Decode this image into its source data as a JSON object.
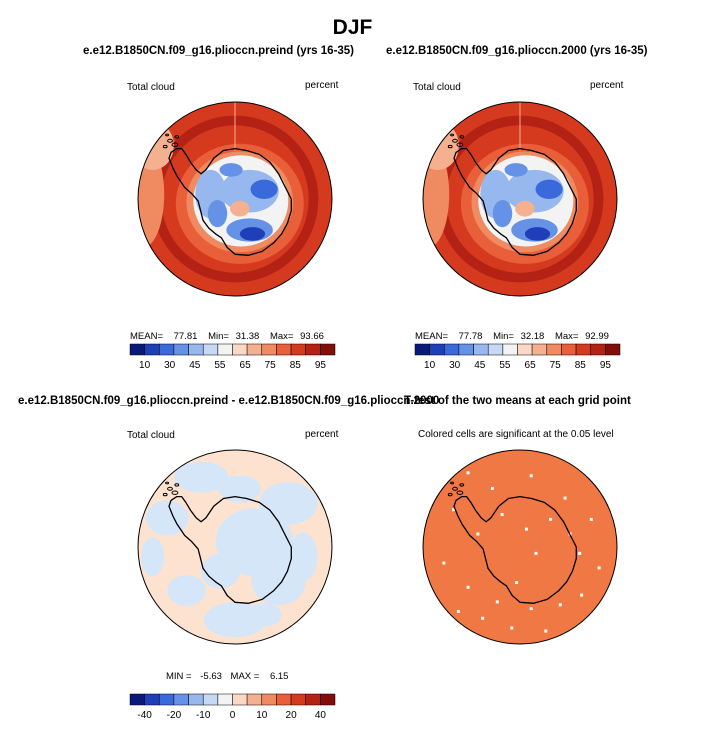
{
  "page": {
    "title": "DJF"
  },
  "panels": [
    {
      "title": "e.e12.B1850CN.f09_g16.plioccn.preind (yrs 16-35)",
      "left_label": "Total cloud",
      "right_label": "percent",
      "stats": {
        "mean_label": "MEAN=",
        "mean": "77.81",
        "min_label": "Min=",
        "min": "31.38",
        "max_label": "Max=",
        "max": "93.66"
      },
      "colorbar": {
        "labels": [
          "10",
          "30",
          "45",
          "55",
          "65",
          "75",
          "85",
          "95"
        ]
      }
    },
    {
      "title": "e.e12.B1850CN.f09_g16.plioccn.2000 (yrs 16-35)",
      "left_label": "Total cloud",
      "right_label": "percent",
      "stats": {
        "mean_label": "MEAN=",
        "mean": "77.78",
        "min_label": "Min=",
        "min": "32.18",
        "max_label": "Max=",
        "max": "92.99"
      },
      "colorbar": {
        "labels": [
          "10",
          "30",
          "45",
          "55",
          "65",
          "75",
          "85",
          "95"
        ]
      }
    },
    {
      "title": "e.e12.B1850CN.f09_g16.plioccn.preind - e.e12.B1850CN.f09_g16.plioccn.2000",
      "left_label": "Total cloud",
      "right_label": "percent",
      "stats": {
        "min_label": "MIN =",
        "min": "-5.63",
        "max_label": "MAX =",
        "max": "6.15"
      },
      "colorbar": {
        "labels": [
          "-40",
          "-20",
          "-10",
          "0",
          "10",
          "20",
          "40"
        ]
      }
    },
    {
      "title": "T-test of the two means at each grid point",
      "subtitle": "Colored cells are significant at the 0.05 level"
    }
  ],
  "colors": {
    "scale": [
      "#0a1a7a",
      "#1f3fb8",
      "#3a69dc",
      "#6592e6",
      "#97b8ee",
      "#c6d8f3",
      "#f3f3f3",
      "#fad8c6",
      "#f5b090",
      "#ef8a61",
      "#e85f3a",
      "#d63a1e",
      "#b32214",
      "#820e0a"
    ],
    "diff_positive": "#fde3cf",
    "diff_negative": "#d4e6f8",
    "significant": "#f07845",
    "coast": "#000000"
  }
}
